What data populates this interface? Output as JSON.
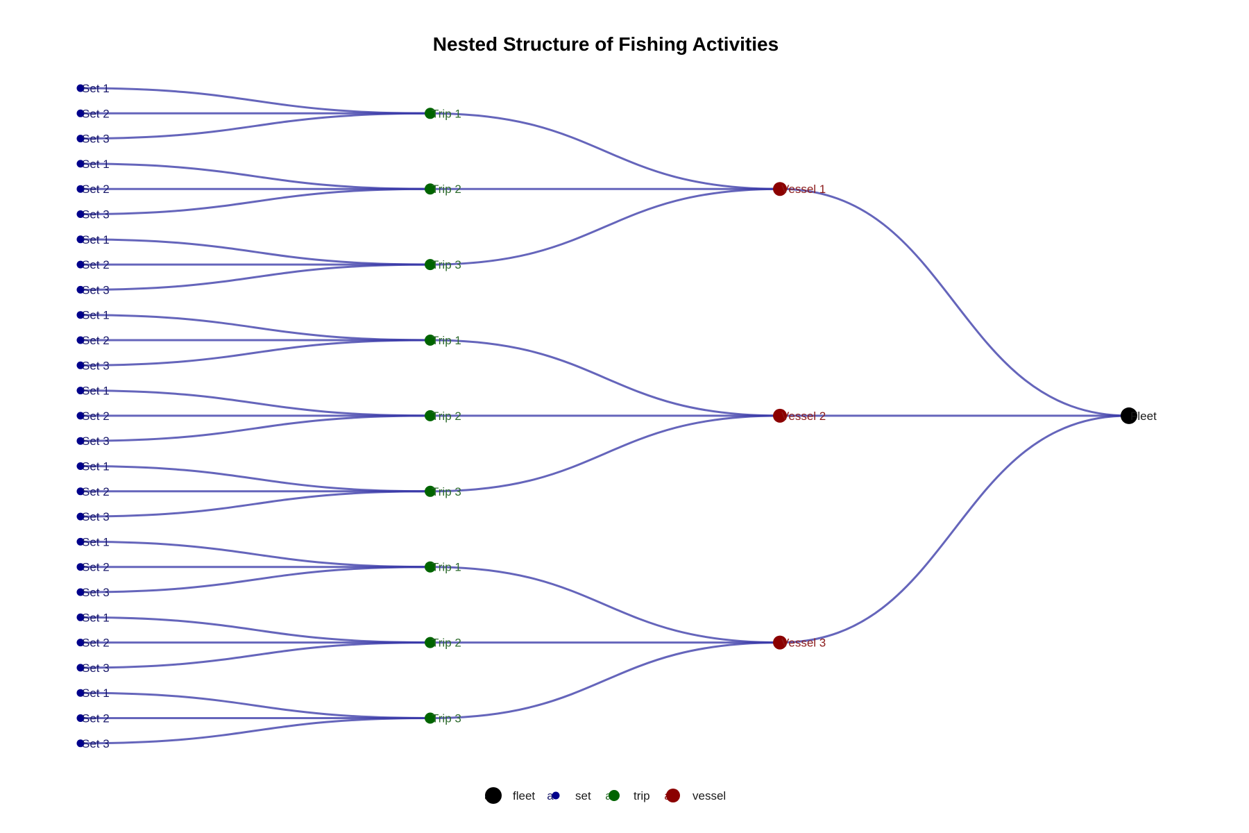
{
  "title": "Nested Structure of Fishing Activities",
  "colors": {
    "fleet": "#000000",
    "vessel": "#8B0000",
    "trip": "#006400",
    "set": "#00008B",
    "edge": "#3a3aa8",
    "fleet_label": "#1a1a1a",
    "vessel_label": "#8B1a1a",
    "trip_label": "#2e6b2e",
    "set_label": "#1a1a6b"
  },
  "tree": {
    "label": "Fleet",
    "type": "fleet",
    "children": [
      {
        "label": "Vessel 1",
        "type": "vessel",
        "children": [
          {
            "label": "Trip 1",
            "type": "trip",
            "children": [
              {
                "label": "Set 1",
                "type": "set"
              },
              {
                "label": "Set 2",
                "type": "set"
              },
              {
                "label": "Set 3",
                "type": "set"
              }
            ]
          },
          {
            "label": "Trip 2",
            "type": "trip",
            "children": [
              {
                "label": "Set 1",
                "type": "set"
              },
              {
                "label": "Set 2",
                "type": "set"
              },
              {
                "label": "Set 3",
                "type": "set"
              }
            ]
          },
          {
            "label": "Trip 3",
            "type": "trip",
            "children": [
              {
                "label": "Set 1",
                "type": "set"
              },
              {
                "label": "Set 2",
                "type": "set"
              },
              {
                "label": "Set 3",
                "type": "set"
              }
            ]
          }
        ]
      },
      {
        "label": "Vessel 2",
        "type": "vessel",
        "children": [
          {
            "label": "Trip 1",
            "type": "trip",
            "children": [
              {
                "label": "Set 1",
                "type": "set"
              },
              {
                "label": "Set 2",
                "type": "set"
              },
              {
                "label": "Set 3",
                "type": "set"
              }
            ]
          },
          {
            "label": "Trip 2",
            "type": "trip",
            "children": [
              {
                "label": "Set 1",
                "type": "set"
              },
              {
                "label": "Set 2",
                "type": "set"
              },
              {
                "label": "Set 3",
                "type": "set"
              }
            ]
          },
          {
            "label": "Trip 3",
            "type": "trip",
            "children": [
              {
                "label": "Set 1",
                "type": "set"
              },
              {
                "label": "Set 2",
                "type": "set"
              },
              {
                "label": "Set 3",
                "type": "set"
              }
            ]
          }
        ]
      },
      {
        "label": "Vessel 3",
        "type": "vessel",
        "children": [
          {
            "label": "Trip 1",
            "type": "trip",
            "children": [
              {
                "label": "Set 1",
                "type": "set"
              },
              {
                "label": "Set 2",
                "type": "set"
              },
              {
                "label": "Set 3",
                "type": "set"
              }
            ]
          },
          {
            "label": "Trip 2",
            "type": "trip",
            "children": [
              {
                "label": "Set 1",
                "type": "set"
              },
              {
                "label": "Set 2",
                "type": "set"
              },
              {
                "label": "Set 3",
                "type": "set"
              }
            ]
          },
          {
            "label": "Trip 3",
            "type": "trip",
            "children": [
              {
                "label": "Set 1",
                "type": "set"
              },
              {
                "label": "Set 2",
                "type": "set"
              },
              {
                "label": "Set 3",
                "type": "set"
              }
            ]
          }
        ]
      }
    ]
  },
  "legend": {
    "key_glyph": "a",
    "items": [
      {
        "type": "fleet",
        "label": "fleet"
      },
      {
        "type": "set",
        "label": "set"
      },
      {
        "type": "trip",
        "label": "trip"
      },
      {
        "type": "vessel",
        "label": "vessel"
      }
    ]
  }
}
